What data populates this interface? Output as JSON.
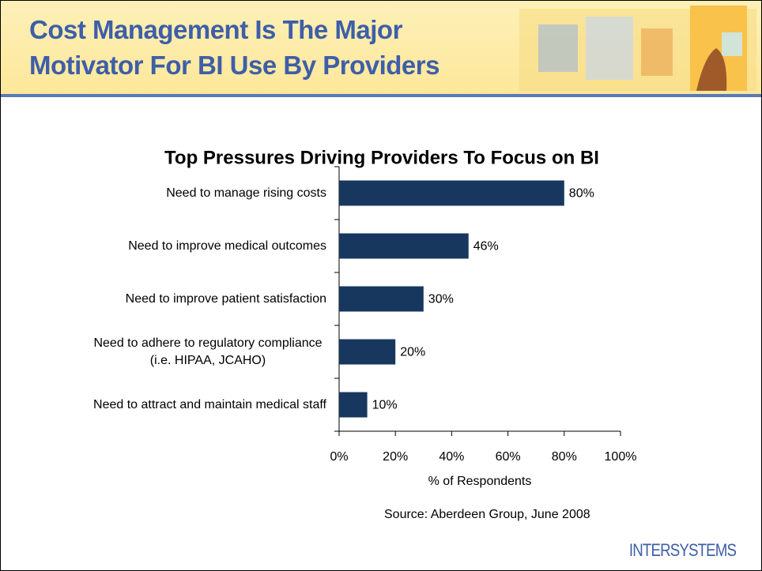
{
  "title": "Cost Management Is The Major Motivator For BI Use By Providers",
  "source": "Source: Aberdeen Group, June 2008",
  "logo": "INTERSYSTEMS",
  "chart_data": {
    "type": "bar",
    "orientation": "horizontal",
    "title": "Top Pressures Driving Providers To Focus on BI",
    "categories": [
      "Need to manage rising costs",
      "Need to improve medical outcomes",
      "Need to improve patient satisfaction",
      "Need to adhere to regulatory compliance (i.e. HIPAA, JCAHO)",
      "Need to attract and maintain medical staff"
    ],
    "values": [
      80,
      46,
      30,
      20,
      10
    ],
    "value_labels": [
      "80%",
      "46%",
      "30%",
      "20%",
      "10%"
    ],
    "color": "#17375e",
    "xlabel": "% of Respondents",
    "xlim": [
      0,
      100
    ],
    "xticks": [
      {
        "value": 0,
        "label": "0%"
      },
      {
        "value": 20,
        "label": "20%"
      },
      {
        "value": 40,
        "label": "40%"
      },
      {
        "value": 60,
        "label": "60%"
      },
      {
        "value": 80,
        "label": "80%"
      },
      {
        "value": 100,
        "label": "100%"
      }
    ],
    "grid": false
  }
}
